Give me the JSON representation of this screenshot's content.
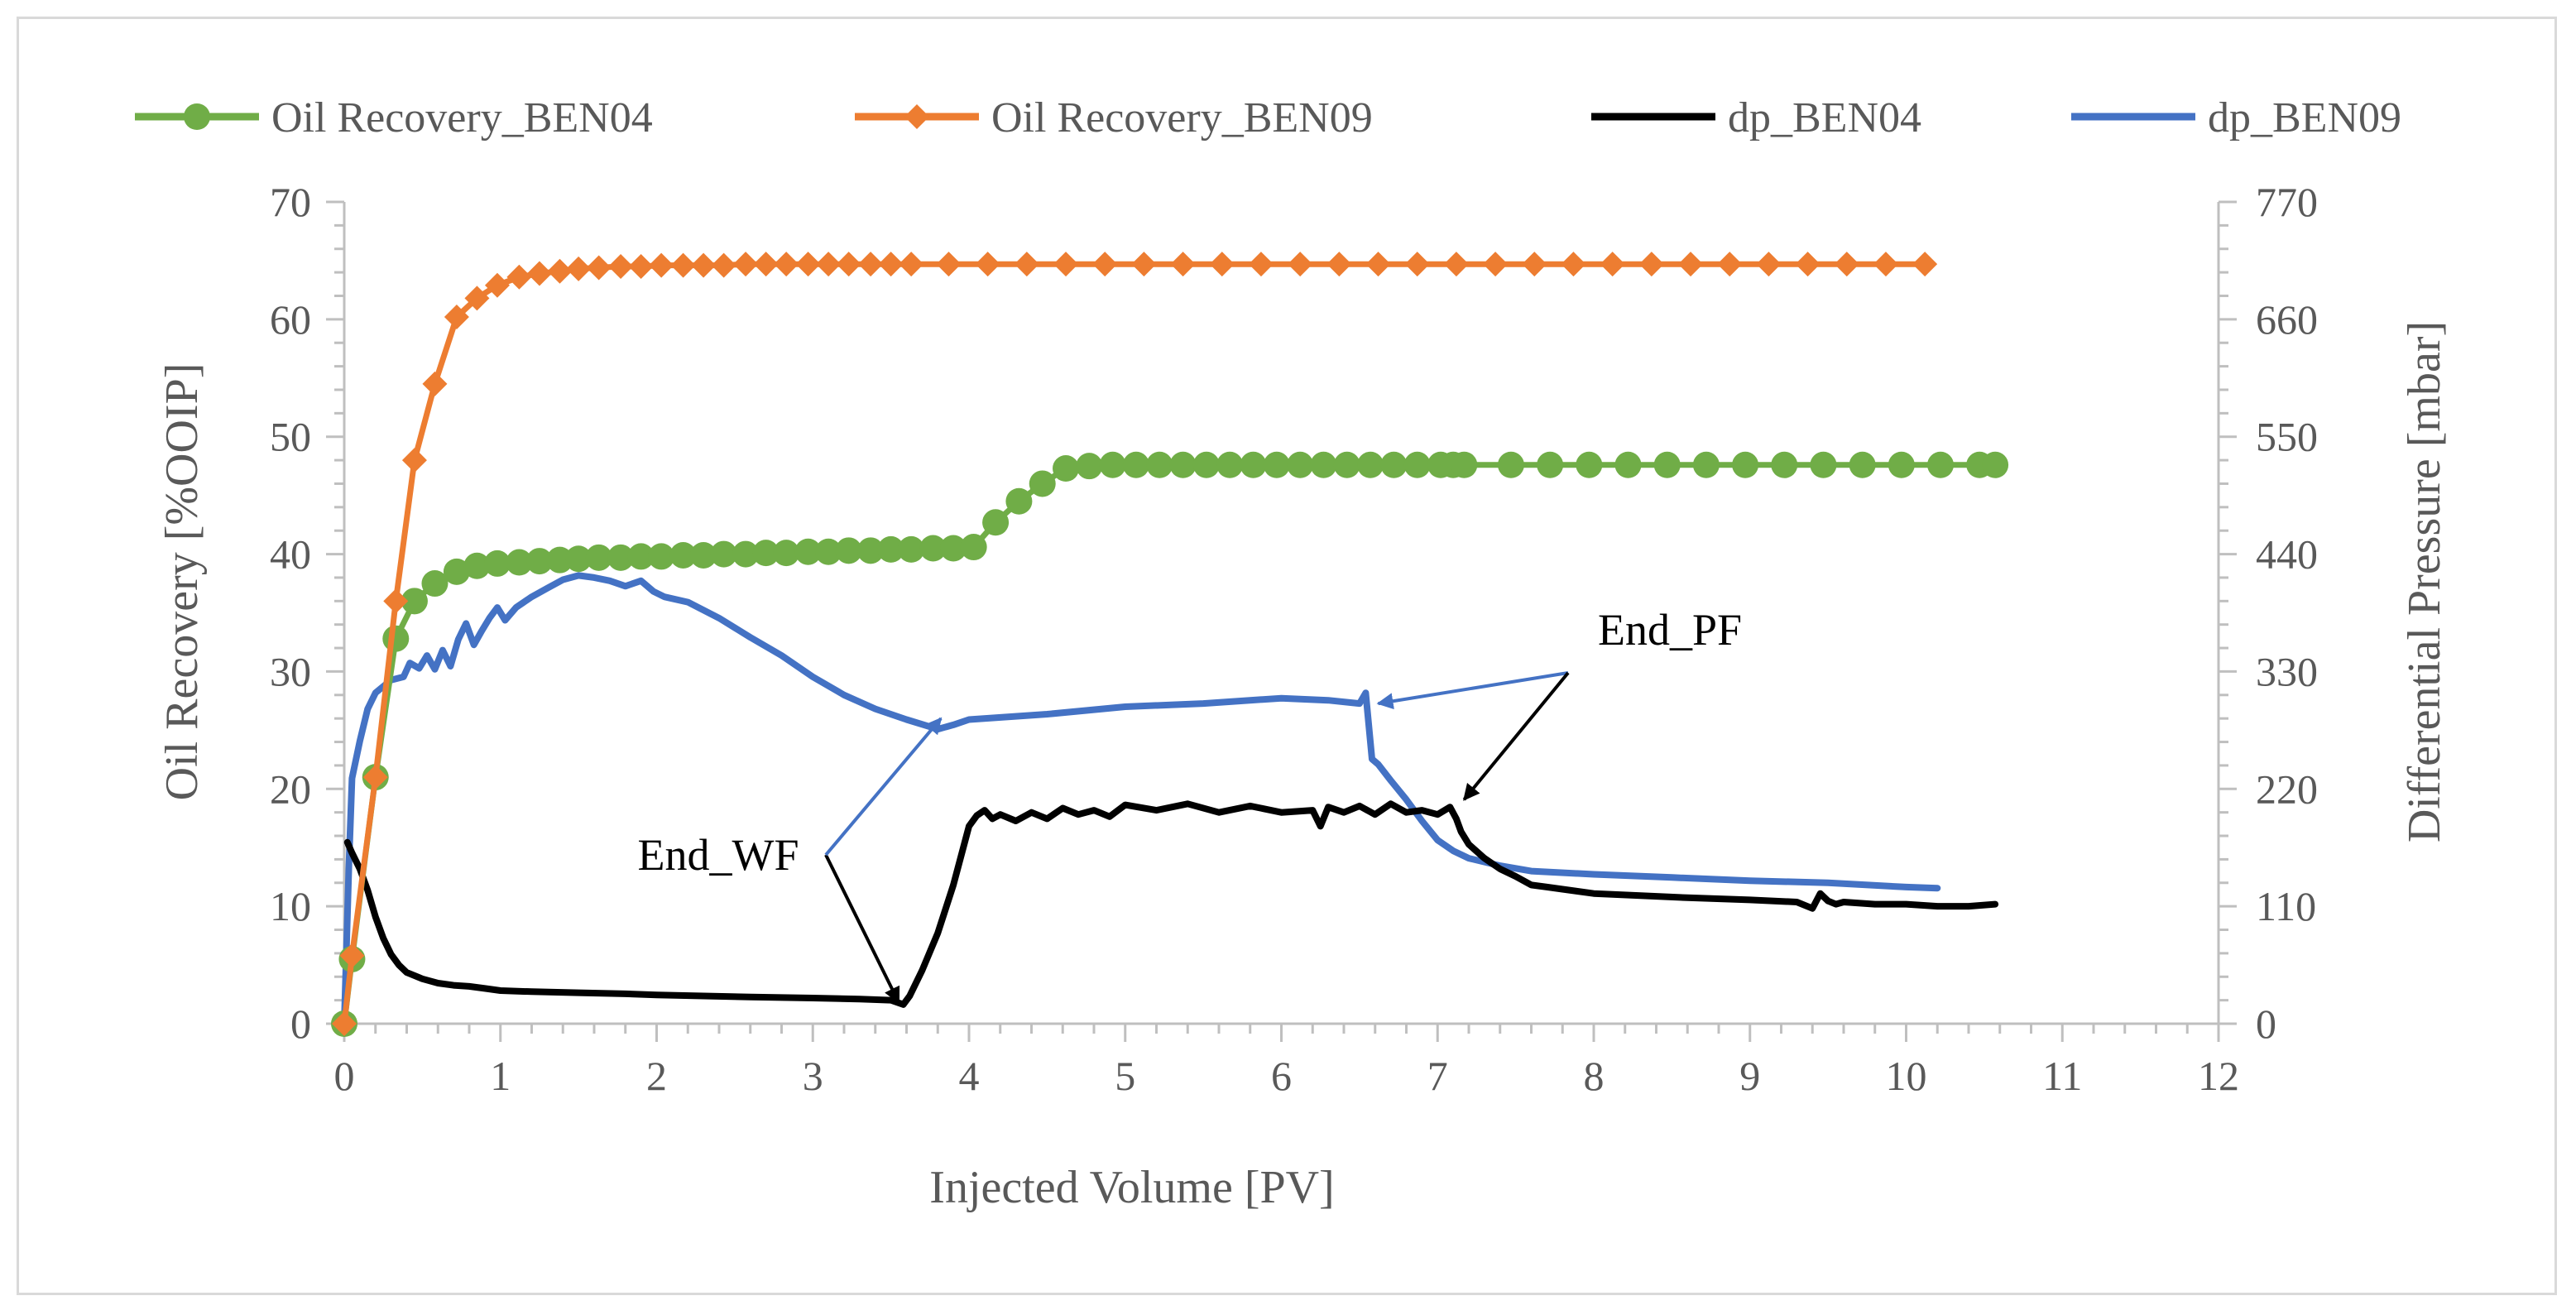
{
  "chart_data": {
    "type": "line",
    "xlabel": "Injected Volume [PV]",
    "ylabel": "Oil Recovery [%OOIP]",
    "y2label": "Differential Pressure [mbar]",
    "xlim": [
      0,
      12
    ],
    "ylim": [
      0,
      70
    ],
    "y2lim": [
      0,
      770
    ],
    "x_ticks": [
      "0",
      "1",
      "2",
      "3",
      "4",
      "5",
      "6",
      "7",
      "8",
      "9",
      "10",
      "11",
      "12"
    ],
    "y_ticks": [
      "0",
      "10",
      "20",
      "30",
      "40",
      "50",
      "60",
      "70"
    ],
    "y2_ticks": [
      "0",
      "110",
      "220",
      "330",
      "440",
      "550",
      "660",
      "770"
    ],
    "legend_position": "top",
    "colors": {
      "oil_ben04": "#70ad47",
      "oil_ben09": "#ed7d31",
      "dp_ben04": "#000000",
      "dp_ben09": "#4472c4",
      "axis": "#bfbfbf",
      "text": "#595959"
    },
    "series": [
      {
        "name": "Oil Recovery_BEN04",
        "axis": "left",
        "marker": "circle",
        "x": [
          0.0,
          0.05,
          0.2,
          0.33,
          0.45,
          0.58,
          0.72,
          0.85,
          0.98,
          1.12,
          1.25,
          1.38,
          1.5,
          1.63,
          1.77,
          1.9,
          2.03,
          2.17,
          2.3,
          2.43,
          2.57,
          2.7,
          2.83,
          2.97,
          3.1,
          3.23,
          3.37,
          3.5,
          3.63,
          3.77,
          3.9,
          4.03,
          4.17,
          4.32,
          4.47,
          4.62,
          4.77,
          4.92,
          5.07,
          5.22,
          5.37,
          5.52,
          5.67,
          5.82,
          5.97,
          6.12,
          6.27,
          6.42,
          6.57,
          6.72,
          6.87,
          7.02,
          7.1,
          7.17,
          7.47,
          7.72,
          7.97,
          8.22,
          8.47,
          8.72,
          8.97,
          9.22,
          9.47,
          9.72,
          9.97,
          10.22,
          10.47,
          10.57
        ],
        "values": [
          0.0,
          5.5,
          21.0,
          32.8,
          36.0,
          37.5,
          38.5,
          39.0,
          39.2,
          39.3,
          39.4,
          39.5,
          39.6,
          39.7,
          39.7,
          39.8,
          39.8,
          39.9,
          39.9,
          40.0,
          40.0,
          40.1,
          40.1,
          40.2,
          40.2,
          40.3,
          40.3,
          40.4,
          40.4,
          40.5,
          40.5,
          40.6,
          42.7,
          44.5,
          46.0,
          47.3,
          47.5,
          47.6,
          47.6,
          47.6,
          47.6,
          47.6,
          47.6,
          47.6,
          47.6,
          47.6,
          47.6,
          47.6,
          47.6,
          47.6,
          47.6,
          47.6,
          47.6,
          47.6,
          47.6,
          47.6,
          47.6,
          47.6,
          47.6,
          47.6,
          47.6,
          47.6,
          47.6,
          47.6,
          47.6,
          47.6,
          47.6,
          47.6
        ]
      },
      {
        "name": "Oil Recovery_BEN09",
        "axis": "left",
        "marker": "diamond",
        "x": [
          0.0,
          0.05,
          0.2,
          0.33,
          0.45,
          0.58,
          0.72,
          0.85,
          0.98,
          1.12,
          1.25,
          1.38,
          1.5,
          1.63,
          1.77,
          1.9,
          2.03,
          2.17,
          2.3,
          2.43,
          2.57,
          2.7,
          2.83,
          2.97,
          3.1,
          3.23,
          3.37,
          3.5,
          3.63,
          3.87,
          4.12,
          4.37,
          4.62,
          4.87,
          5.12,
          5.37,
          5.62,
          5.87,
          6.12,
          6.37,
          6.62,
          6.87,
          7.12,
          7.37,
          7.62,
          7.87,
          8.12,
          8.37,
          8.62,
          8.87,
          9.12,
          9.37,
          9.62,
          9.87,
          10.12
        ],
        "values": [
          0.0,
          5.8,
          21.0,
          36.0,
          48.0,
          54.5,
          60.2,
          61.8,
          62.9,
          63.6,
          63.9,
          64.1,
          64.3,
          64.4,
          64.5,
          64.5,
          64.6,
          64.6,
          64.6,
          64.6,
          64.7,
          64.7,
          64.7,
          64.7,
          64.7,
          64.7,
          64.7,
          64.7,
          64.7,
          64.7,
          64.7,
          64.7,
          64.7,
          64.7,
          64.7,
          64.7,
          64.7,
          64.7,
          64.7,
          64.7,
          64.7,
          64.7,
          64.7,
          64.7,
          64.7,
          64.7,
          64.7,
          64.7,
          64.7,
          64.7,
          64.7,
          64.7,
          64.7,
          64.7,
          64.7
        ]
      },
      {
        "name": "dp_BEN04",
        "axis": "right",
        "marker": "none",
        "x": [
          0.02,
          0.05,
          0.1,
          0.15,
          0.2,
          0.25,
          0.3,
          0.35,
          0.4,
          0.5,
          0.6,
          0.7,
          0.8,
          0.9,
          1.0,
          1.2,
          1.5,
          1.8,
          2.0,
          2.3,
          2.6,
          3.0,
          3.3,
          3.5,
          3.58,
          3.62,
          3.7,
          3.8,
          3.9,
          4.0,
          4.05,
          4.1,
          4.15,
          4.2,
          4.3,
          4.4,
          4.5,
          4.6,
          4.7,
          4.8,
          4.9,
          5.0,
          5.2,
          5.4,
          5.6,
          5.8,
          6.0,
          6.2,
          6.25,
          6.3,
          6.4,
          6.5,
          6.6,
          6.7,
          6.8,
          6.9,
          7.0,
          7.08,
          7.12,
          7.15,
          7.2,
          7.3,
          7.4,
          7.5,
          7.6,
          7.7,
          7.8,
          8.0,
          8.3,
          8.6,
          9.0,
          9.3,
          9.4,
          9.45,
          9.5,
          9.55,
          9.6,
          9.8,
          10.0,
          10.2,
          10.4,
          10.57
        ],
        "values": [
          170,
          160,
          145,
          125,
          100,
          80,
          65,
          55,
          48,
          42,
          38,
          36,
          35,
          33,
          31,
          30,
          29,
          28,
          27,
          26,
          25,
          24,
          23,
          22,
          18,
          26,
          50,
          85,
          130,
          185,
          195,
          200,
          192,
          196,
          190,
          198,
          192,
          202,
          196,
          200,
          194,
          205,
          200,
          206,
          198,
          204,
          198,
          200,
          185,
          203,
          198,
          204,
          196,
          206,
          198,
          200,
          196,
          203,
          192,
          180,
          168,
          155,
          145,
          138,
          130,
          128,
          126,
          122,
          120,
          118,
          116,
          114,
          108,
          122,
          115,
          112,
          114,
          112,
          112,
          110,
          110,
          112
        ]
      },
      {
        "name": "dp_BEN09",
        "axis": "right",
        "marker": "none",
        "x": [
          0.0,
          0.03,
          0.05,
          0.1,
          0.15,
          0.2,
          0.3,
          0.38,
          0.42,
          0.48,
          0.53,
          0.58,
          0.63,
          0.68,
          0.73,
          0.78,
          0.83,
          0.88,
          0.93,
          0.98,
          1.03,
          1.1,
          1.2,
          1.3,
          1.4,
          1.5,
          1.6,
          1.7,
          1.8,
          1.9,
          1.98,
          2.05,
          2.2,
          2.4,
          2.6,
          2.8,
          3.0,
          3.2,
          3.4,
          3.6,
          3.8,
          3.9,
          4.0,
          4.5,
          5.0,
          5.5,
          6.0,
          6.3,
          6.5,
          6.54,
          6.58,
          6.62,
          6.7,
          6.8,
          6.9,
          7.0,
          7.1,
          7.2,
          7.4,
          7.6,
          8.0,
          8.5,
          9.0,
          9.5,
          10.0,
          10.2
        ],
        "values": [
          0,
          150,
          230,
          265,
          295,
          310,
          322,
          325,
          338,
          333,
          345,
          332,
          350,
          335,
          360,
          375,
          355,
          368,
          380,
          390,
          378,
          390,
          400,
          408,
          416,
          420,
          418,
          415,
          410,
          415,
          405,
          400,
          395,
          380,
          362,
          345,
          325,
          308,
          295,
          285,
          276,
          280,
          285,
          290,
          297,
          300,
          305,
          303,
          300,
          310,
          248,
          243,
          228,
          210,
          190,
          172,
          162,
          155,
          148,
          143,
          140,
          137,
          134,
          132,
          128,
          127
        ]
      }
    ],
    "legend_labels": [
      "Oil Recovery_BEN04",
      "Oil Recovery_BEN09",
      "dp_BEN04",
      "dp_BEN09"
    ],
    "annotations": [
      {
        "label": "End_WF",
        "arrow_targets": [
          [
            3.55,
            20
          ],
          [
            3.82,
            286
          ]
        ],
        "axis": "right"
      },
      {
        "label": "End_PF",
        "arrow_targets": [
          [
            6.62,
            300
          ],
          [
            7.17,
            210
          ]
        ],
        "axis": "right"
      }
    ]
  }
}
